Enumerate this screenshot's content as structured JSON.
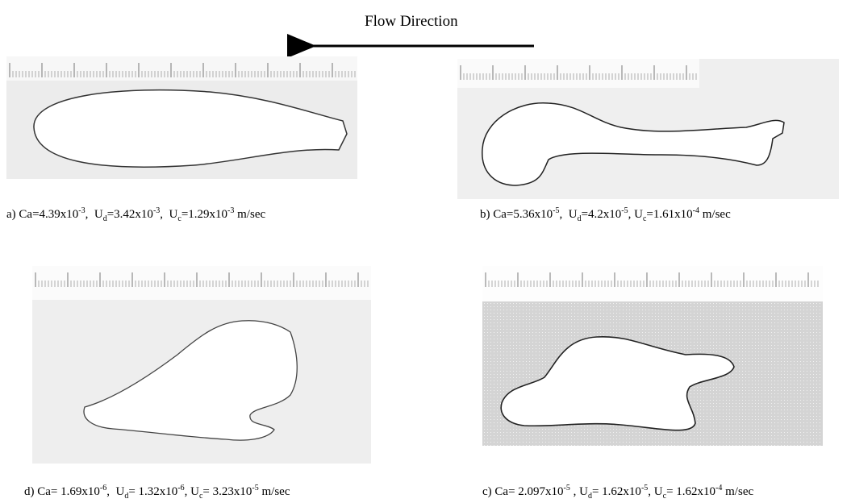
{
  "header": {
    "title": "Flow Direction"
  },
  "panels": [
    {
      "caption": [
        {
          "text": "a) Ca=4.39x10"
        },
        {
          "sup": "-3"
        },
        {
          "text": ",  U"
        },
        {
          "sub": "d"
        },
        {
          "text": "=3.42x10"
        },
        {
          "sup": "-3"
        },
        {
          "text": ",  U"
        },
        {
          "sub": "c"
        },
        {
          "text": "=1.29x10"
        },
        {
          "sup": "-3"
        },
        {
          "text": " m/sec"
        }
      ]
    },
    {
      "caption": [
        {
          "text": "b) Ca=5.36x10"
        },
        {
          "sup": "-5"
        },
        {
          "text": ",  U"
        },
        {
          "sub": "d"
        },
        {
          "text": "=4.2x10"
        },
        {
          "sup": "-5"
        },
        {
          "text": ", U"
        },
        {
          "sub": "c"
        },
        {
          "text": "=1.61x10"
        },
        {
          "sup": "-4"
        },
        {
          "text": " m/sec"
        }
      ]
    },
    {
      "caption": [
        {
          "text": "d) Ca= 1.69x10"
        },
        {
          "sup": "-6"
        },
        {
          "text": ",  U"
        },
        {
          "sub": "d"
        },
        {
          "text": "= 1.32x10"
        },
        {
          "sup": "-6"
        },
        {
          "text": ", U"
        },
        {
          "sub": "c"
        },
        {
          "text": "= 3.23x10"
        },
        {
          "sup": "-5"
        },
        {
          "text": " m/sec"
        }
      ]
    },
    {
      "caption": [
        {
          "text": "c) Ca= 2.097x10"
        },
        {
          "sup": "-5"
        },
        {
          "text": " , U"
        },
        {
          "sub": "d"
        },
        {
          "text": "= 1.62x10"
        },
        {
          "sup": "-5"
        },
        {
          "text": ", U"
        },
        {
          "sub": "c"
        },
        {
          "text": "= 1.62x10"
        },
        {
          "sup": "-4"
        },
        {
          "text": " m/sec"
        }
      ]
    }
  ]
}
